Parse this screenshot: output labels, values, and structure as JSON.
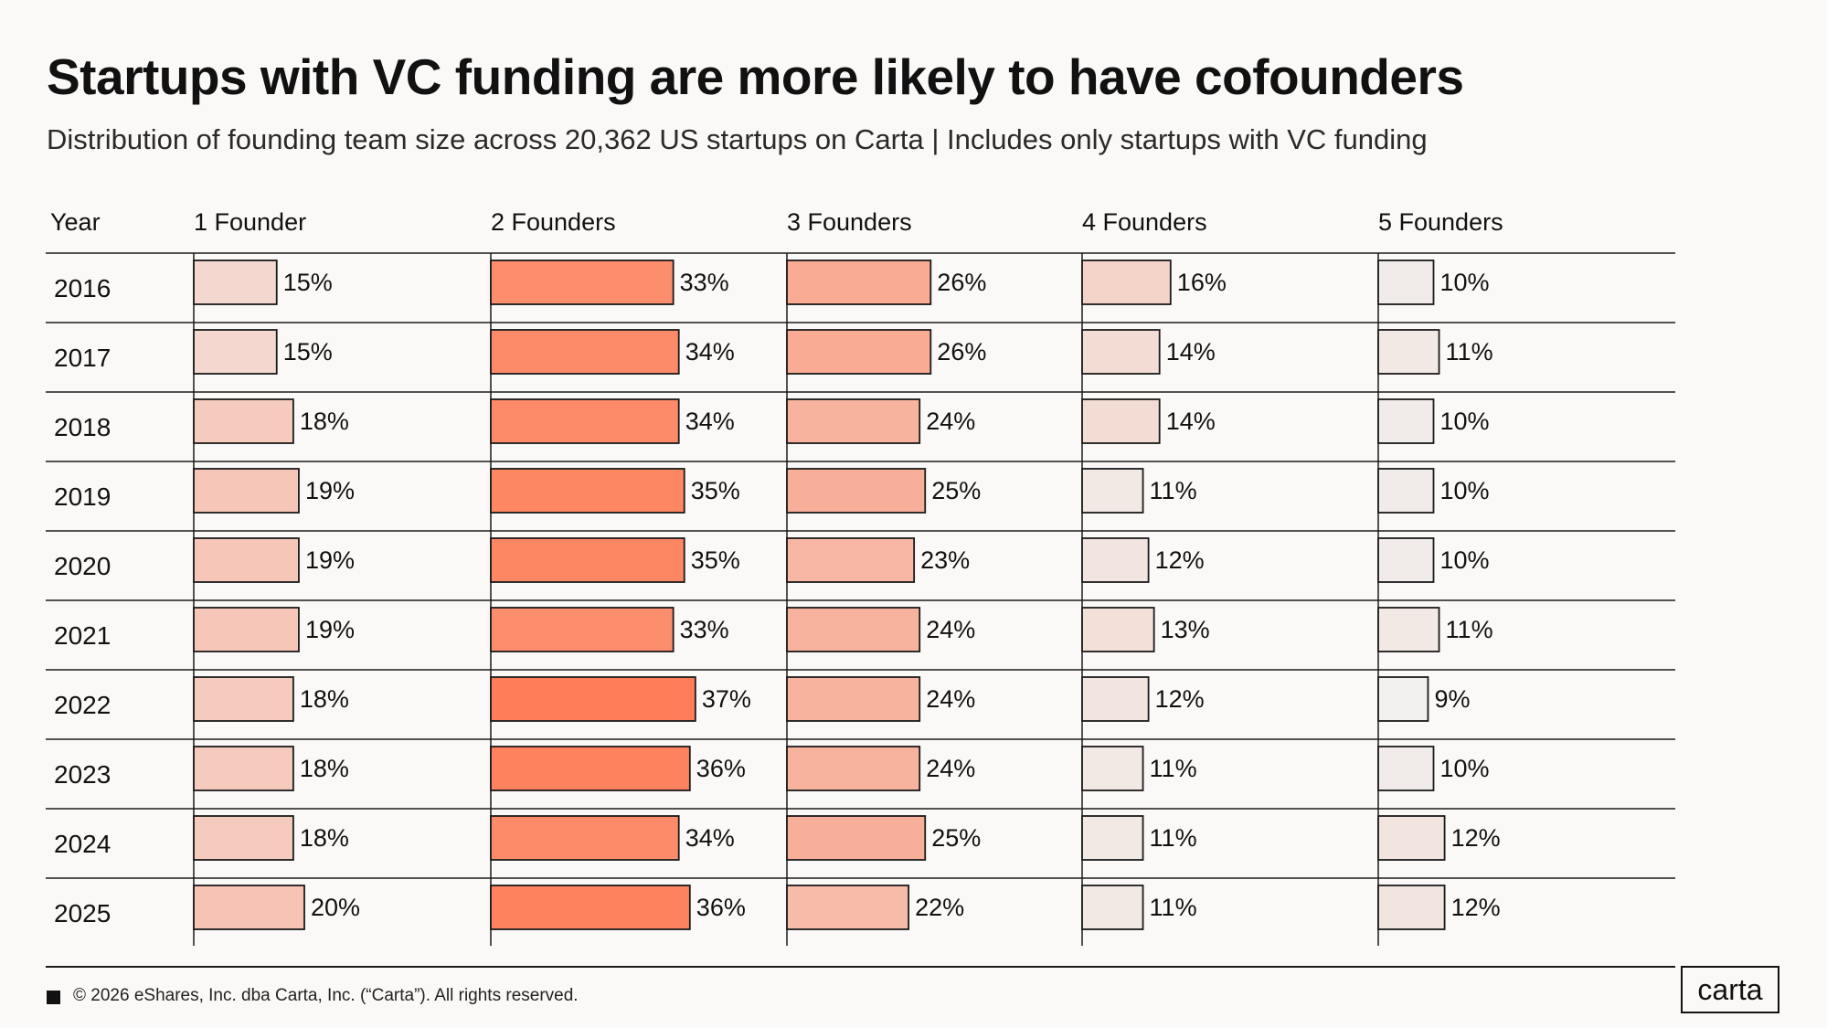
{
  "chart_data": {
    "type": "table",
    "title": "Startups with VC funding are more likely to have cofounders",
    "subtitle": "Distribution of founding team size across 20,362 US startups on Carta | Includes only startups with VC funding",
    "row_header": "Year",
    "columns": [
      "1 Founder",
      "2 Founders",
      "3 Founders",
      "4 Founders",
      "5 Founders"
    ],
    "rows": [
      {
        "year": "2016",
        "values": [
          15,
          33,
          26,
          16,
          10
        ]
      },
      {
        "year": "2017",
        "values": [
          15,
          34,
          26,
          14,
          11
        ]
      },
      {
        "year": "2018",
        "values": [
          18,
          34,
          24,
          14,
          10
        ]
      },
      {
        "year": "2019",
        "values": [
          19,
          35,
          25,
          11,
          10
        ]
      },
      {
        "year": "2020",
        "values": [
          19,
          35,
          23,
          12,
          10
        ]
      },
      {
        "year": "2021",
        "values": [
          19,
          33,
          24,
          13,
          11
        ]
      },
      {
        "year": "2022",
        "values": [
          18,
          37,
          24,
          12,
          9
        ]
      },
      {
        "year": "2023",
        "values": [
          18,
          36,
          24,
          11,
          10
        ]
      },
      {
        "year": "2024",
        "values": [
          18,
          34,
          25,
          11,
          12
        ]
      },
      {
        "year": "2025",
        "values": [
          20,
          36,
          22,
          11,
          12
        ]
      }
    ],
    "value_suffix": "%",
    "colors": {
      "high": "#fe7e58",
      "low": "#f1f0ef",
      "border": "#1a1a1a"
    }
  },
  "footer": {
    "copyright": "© 2026 eShares, Inc. dba Carta, Inc. (“Carta”). All rights reserved.",
    "logo": "carta"
  }
}
